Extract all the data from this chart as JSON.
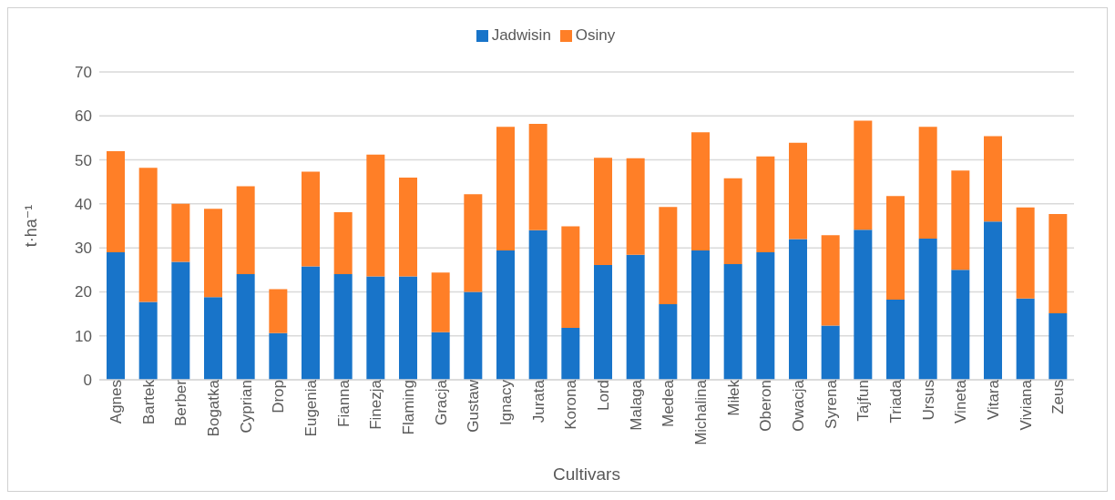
{
  "chart_data": {
    "type": "bar",
    "stacked": true,
    "xlabel": "Cultivars",
    "ylabel": "t·ha⁻¹",
    "categories": [
      "Agnes",
      "Bartek",
      "Berber",
      "Bogatka",
      "Cyprian",
      "Drop",
      "Eugenia",
      "Fianna",
      "Finezja",
      "Flaming",
      "Gracja",
      "Gustaw",
      "Ignacy",
      "Jurata",
      "Korona",
      "Lord",
      "Malaga",
      "Medea",
      "Michalina",
      "Miłek",
      "Oberon",
      "Owacja",
      "Syrena",
      "Tajfun",
      "Triada",
      "Ursus",
      "Vineta",
      "Vitara",
      "Viviana",
      "Zeus"
    ],
    "series": [
      {
        "name": "Jadwisin",
        "color": "#1874c9",
        "values": [
          29,
          17.7,
          26.8,
          18.8,
          24,
          10.6,
          25.8,
          24,
          23.5,
          23.5,
          10.8,
          20,
          29.4,
          34,
          11.8,
          26.1,
          28.4,
          17.2,
          29.4,
          26.3,
          29,
          32,
          12.3,
          34.1,
          18.2,
          32.1,
          25,
          36,
          18.5,
          15.1
        ]
      },
      {
        "name": "Osiny",
        "color": "#ff7f27",
        "values": [
          23,
          30.5,
          13.2,
          20.1,
          20,
          10,
          21.5,
          14.1,
          27.7,
          22.5,
          13.6,
          22.2,
          28.1,
          24.2,
          23.1,
          24.4,
          22,
          22.1,
          26.9,
          19.5,
          21.8,
          21.9,
          20.6,
          24.8,
          23.6,
          25.4,
          22.6,
          19.4,
          20.7,
          22.6
        ]
      }
    ],
    "ylim": [
      0,
      70
    ],
    "yticks": [
      0,
      10,
      20,
      30,
      40,
      50,
      60,
      70
    ],
    "grid": "y",
    "legend": "top"
  }
}
